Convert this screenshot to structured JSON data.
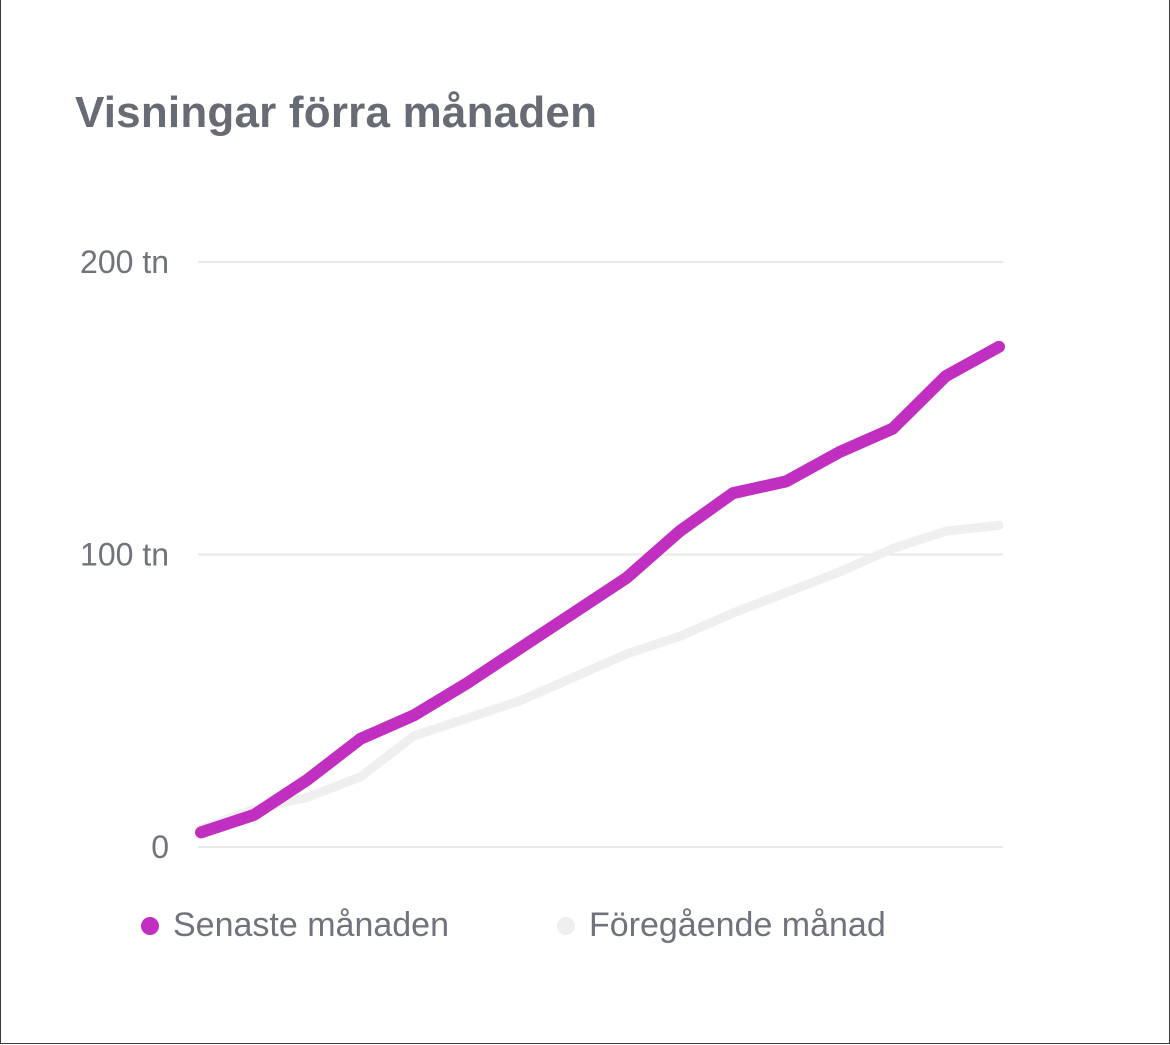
{
  "title": "Visningar förra månaden",
  "colors": {
    "title": "#676c74",
    "axis_text": "#6f737b",
    "gridline": "#e9e9ec",
    "current_series": "#c02fc0",
    "previous_series": "#efefef"
  },
  "chart_data": {
    "type": "line",
    "title": "Visningar förra månaden",
    "xlabel": "",
    "ylabel": "",
    "ylim": [
      0,
      200
    ],
    "y_ticks": [
      {
        "value": 0,
        "label": "0"
      },
      {
        "value": 100,
        "label": "100 tn"
      },
      {
        "value": 200,
        "label": "200 tn"
      }
    ],
    "grid": true,
    "legend_position": "bottom-left",
    "x": [
      1,
      2,
      3,
      4,
      5,
      6,
      7,
      8,
      9,
      10,
      11,
      12,
      13,
      14,
      15,
      16
    ],
    "series": [
      {
        "name": "Senaste månaden",
        "color": "#c02fc0",
        "values": [
          5,
          11,
          23,
          37,
          45,
          56,
          68,
          80,
          92,
          108,
          121,
          125,
          135,
          143,
          161,
          171
        ]
      },
      {
        "name": "Föregående månad",
        "color": "#efefef",
        "values": [
          6,
          13,
          17,
          24,
          38,
          44,
          50,
          58,
          66,
          72,
          80,
          87,
          94,
          102,
          108,
          110
        ]
      }
    ]
  }
}
